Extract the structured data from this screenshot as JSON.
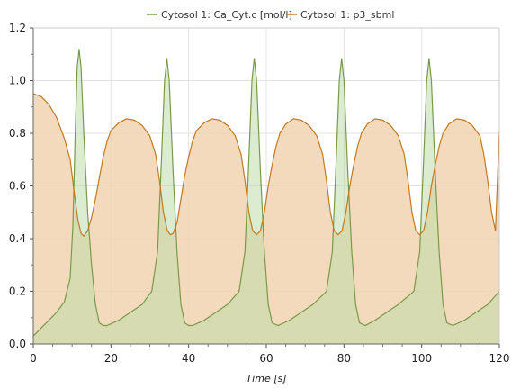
{
  "chart_data": {
    "type": "area",
    "title": "",
    "xlabel": "Time [s]",
    "ylabel": "",
    "xlim": [
      0,
      120
    ],
    "ylim": [
      0,
      1.2
    ],
    "xticks": [
      "0",
      "20",
      "40",
      "60",
      "80",
      "100",
      "120"
    ],
    "yticks": [
      "0.0",
      "0.2",
      "0.4",
      "0.6",
      "0.8",
      "1.0",
      "1.2"
    ],
    "grid": true,
    "legend_position": "top",
    "series": [
      {
        "name": "Cytosol 1: Ca_Cyt.c [mol/l]",
        "color": "#7a9a4a",
        "fill": "#bfdcaa",
        "points": [
          [
            0,
            0.03
          ],
          [
            2,
            0.06
          ],
          [
            4,
            0.09
          ],
          [
            6,
            0.12
          ],
          [
            8,
            0.16
          ],
          [
            9.5,
            0.25
          ],
          [
            10.2,
            0.45
          ],
          [
            10.8,
            0.8
          ],
          [
            11.3,
            1.05
          ],
          [
            11.8,
            1.12
          ],
          [
            12.3,
            1.05
          ],
          [
            13,
            0.8
          ],
          [
            14,
            0.5
          ],
          [
            15,
            0.3
          ],
          [
            16,
            0.15
          ],
          [
            17,
            0.08
          ],
          [
            18,
            0.07
          ],
          [
            19,
            0.07
          ],
          [
            22,
            0.09
          ],
          [
            25,
            0.12
          ],
          [
            28,
            0.15
          ],
          [
            30.5,
            0.2
          ],
          [
            32,
            0.35
          ],
          [
            33,
            0.7
          ],
          [
            33.8,
            1.0
          ],
          [
            34.4,
            1.085
          ],
          [
            35,
            1.0
          ],
          [
            36,
            0.65
          ],
          [
            37,
            0.35
          ],
          [
            38,
            0.15
          ],
          [
            39,
            0.08
          ],
          [
            40,
            0.07
          ],
          [
            41,
            0.07
          ],
          [
            44,
            0.09
          ],
          [
            47,
            0.12
          ],
          [
            50,
            0.15
          ],
          [
            53,
            0.2
          ],
          [
            54.5,
            0.35
          ],
          [
            55.5,
            0.7
          ],
          [
            56.3,
            1.0
          ],
          [
            56.9,
            1.085
          ],
          [
            57.5,
            1.0
          ],
          [
            58.5,
            0.65
          ],
          [
            59.5,
            0.35
          ],
          [
            60.5,
            0.15
          ],
          [
            61.5,
            0.08
          ],
          [
            63,
            0.07
          ],
          [
            66,
            0.09
          ],
          [
            69,
            0.12
          ],
          [
            72,
            0.15
          ],
          [
            75.5,
            0.2
          ],
          [
            77,
            0.35
          ],
          [
            78,
            0.7
          ],
          [
            78.8,
            1.0
          ],
          [
            79.4,
            1.085
          ],
          [
            80,
            1.0
          ],
          [
            81,
            0.65
          ],
          [
            82,
            0.35
          ],
          [
            83,
            0.15
          ],
          [
            84,
            0.08
          ],
          [
            85.5,
            0.07
          ],
          [
            88,
            0.09
          ],
          [
            91,
            0.12
          ],
          [
            94,
            0.15
          ],
          [
            98,
            0.2
          ],
          [
            99.5,
            0.35
          ],
          [
            100.5,
            0.7
          ],
          [
            101.3,
            1.0
          ],
          [
            101.9,
            1.085
          ],
          [
            102.5,
            1.0
          ],
          [
            103.5,
            0.65
          ],
          [
            104.5,
            0.35
          ],
          [
            105.5,
            0.15
          ],
          [
            106.5,
            0.08
          ],
          [
            108,
            0.07
          ],
          [
            111,
            0.09
          ],
          [
            114,
            0.12
          ],
          [
            117,
            0.15
          ],
          [
            120,
            0.2
          ]
        ]
      },
      {
        "name": "Cytosol 1: p3_sbml",
        "color": "#c07a20",
        "fill": "#f2d3b0",
        "points": [
          [
            0,
            0.95
          ],
          [
            2,
            0.94
          ],
          [
            4,
            0.91
          ],
          [
            6,
            0.86
          ],
          [
            8,
            0.78
          ],
          [
            9.5,
            0.7
          ],
          [
            10.5,
            0.58
          ],
          [
            11.5,
            0.47
          ],
          [
            12.3,
            0.42
          ],
          [
            13,
            0.41
          ],
          [
            14,
            0.43
          ],
          [
            15,
            0.48
          ],
          [
            16,
            0.55
          ],
          [
            17,
            0.63
          ],
          [
            18,
            0.71
          ],
          [
            19,
            0.77
          ],
          [
            20,
            0.81
          ],
          [
            22,
            0.84
          ],
          [
            24,
            0.855
          ],
          [
            26,
            0.85
          ],
          [
            28,
            0.83
          ],
          [
            30,
            0.79
          ],
          [
            31.5,
            0.72
          ],
          [
            32.5,
            0.62
          ],
          [
            33.5,
            0.5
          ],
          [
            34.5,
            0.43
          ],
          [
            35.3,
            0.415
          ],
          [
            36,
            0.42
          ],
          [
            37,
            0.46
          ],
          [
            38,
            0.55
          ],
          [
            39,
            0.64
          ],
          [
            40,
            0.71
          ],
          [
            41,
            0.77
          ],
          [
            42,
            0.81
          ],
          [
            44,
            0.84
          ],
          [
            46,
            0.855
          ],
          [
            48,
            0.85
          ],
          [
            50,
            0.83
          ],
          [
            52,
            0.79
          ],
          [
            53.5,
            0.72
          ],
          [
            54.5,
            0.62
          ],
          [
            55.5,
            0.5
          ],
          [
            56.5,
            0.43
          ],
          [
            57.5,
            0.415
          ],
          [
            58.5,
            0.43
          ],
          [
            59.5,
            0.5
          ],
          [
            60.5,
            0.6
          ],
          [
            61.5,
            0.68
          ],
          [
            62.5,
            0.75
          ],
          [
            63.5,
            0.8
          ],
          [
            65,
            0.835
          ],
          [
            67,
            0.855
          ],
          [
            69,
            0.85
          ],
          [
            71,
            0.83
          ],
          [
            73,
            0.79
          ],
          [
            74.5,
            0.72
          ],
          [
            75.5,
            0.62
          ],
          [
            76.5,
            0.5
          ],
          [
            77.5,
            0.43
          ],
          [
            78.5,
            0.415
          ],
          [
            79.5,
            0.43
          ],
          [
            80.5,
            0.5
          ],
          [
            81.5,
            0.6
          ],
          [
            82.5,
            0.68
          ],
          [
            83.5,
            0.75
          ],
          [
            84.5,
            0.8
          ],
          [
            86,
            0.835
          ],
          [
            88,
            0.855
          ],
          [
            90,
            0.85
          ],
          [
            92,
            0.83
          ],
          [
            94,
            0.79
          ],
          [
            95.5,
            0.72
          ],
          [
            96.5,
            0.62
          ],
          [
            97.5,
            0.5
          ],
          [
            98.5,
            0.43
          ],
          [
            99.5,
            0.415
          ],
          [
            100.5,
            0.43
          ],
          [
            101.5,
            0.5
          ],
          [
            102.5,
            0.6
          ],
          [
            103.5,
            0.68
          ],
          [
            104.5,
            0.75
          ],
          [
            105.5,
            0.8
          ],
          [
            107,
            0.835
          ],
          [
            109,
            0.855
          ],
          [
            111,
            0.85
          ],
          [
            113,
            0.83
          ],
          [
            115,
            0.79
          ],
          [
            116,
            0.72
          ],
          [
            117,
            0.62
          ],
          [
            118,
            0.5
          ],
          [
            119,
            0.43
          ],
          [
            120,
            0.81
          ]
        ]
      }
    ]
  }
}
